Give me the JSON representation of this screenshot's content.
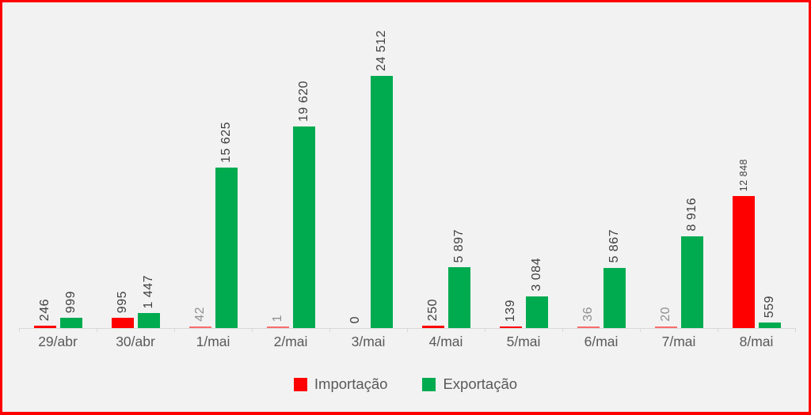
{
  "chart_data": {
    "type": "bar",
    "categories": [
      "29/abr",
      "30/abr",
      "1/mai",
      "2/mai",
      "3/mai",
      "4/mai",
      "5/mai",
      "6/mai",
      "7/mai",
      "8/mai"
    ],
    "series": [
      {
        "name": "Importação",
        "color": "#ff0000",
        "values": [
          246,
          995,
          42,
          1,
          0,
          250,
          139,
          36,
          20,
          12848
        ],
        "labels": [
          "246",
          "995",
          "42",
          "1",
          "0",
          "250",
          "139",
          "36",
          "20",
          "12 848"
        ]
      },
      {
        "name": "Exportação",
        "color": "#00ab50",
        "values": [
          999,
          1447,
          15625,
          19620,
          24512,
          5897,
          3084,
          5867,
          8916,
          559
        ],
        "labels": [
          "999",
          "1 447",
          "15 625",
          "19 620",
          "24 512",
          "5 897",
          "3 084",
          "5 867",
          "8 916",
          "559"
        ]
      }
    ],
    "title": "",
    "xlabel": "",
    "ylabel": "",
    "ylim": [
      0,
      24512
    ],
    "grid": false,
    "legend_position": "bottom",
    "data_labels": "rotated-vertical",
    "frame_color": "#ff0000",
    "background_color": "#f2f2f2",
    "axis_line_color": "#d9d9d9",
    "label_text_color": "#404040",
    "axis_text_color": "#595959"
  }
}
